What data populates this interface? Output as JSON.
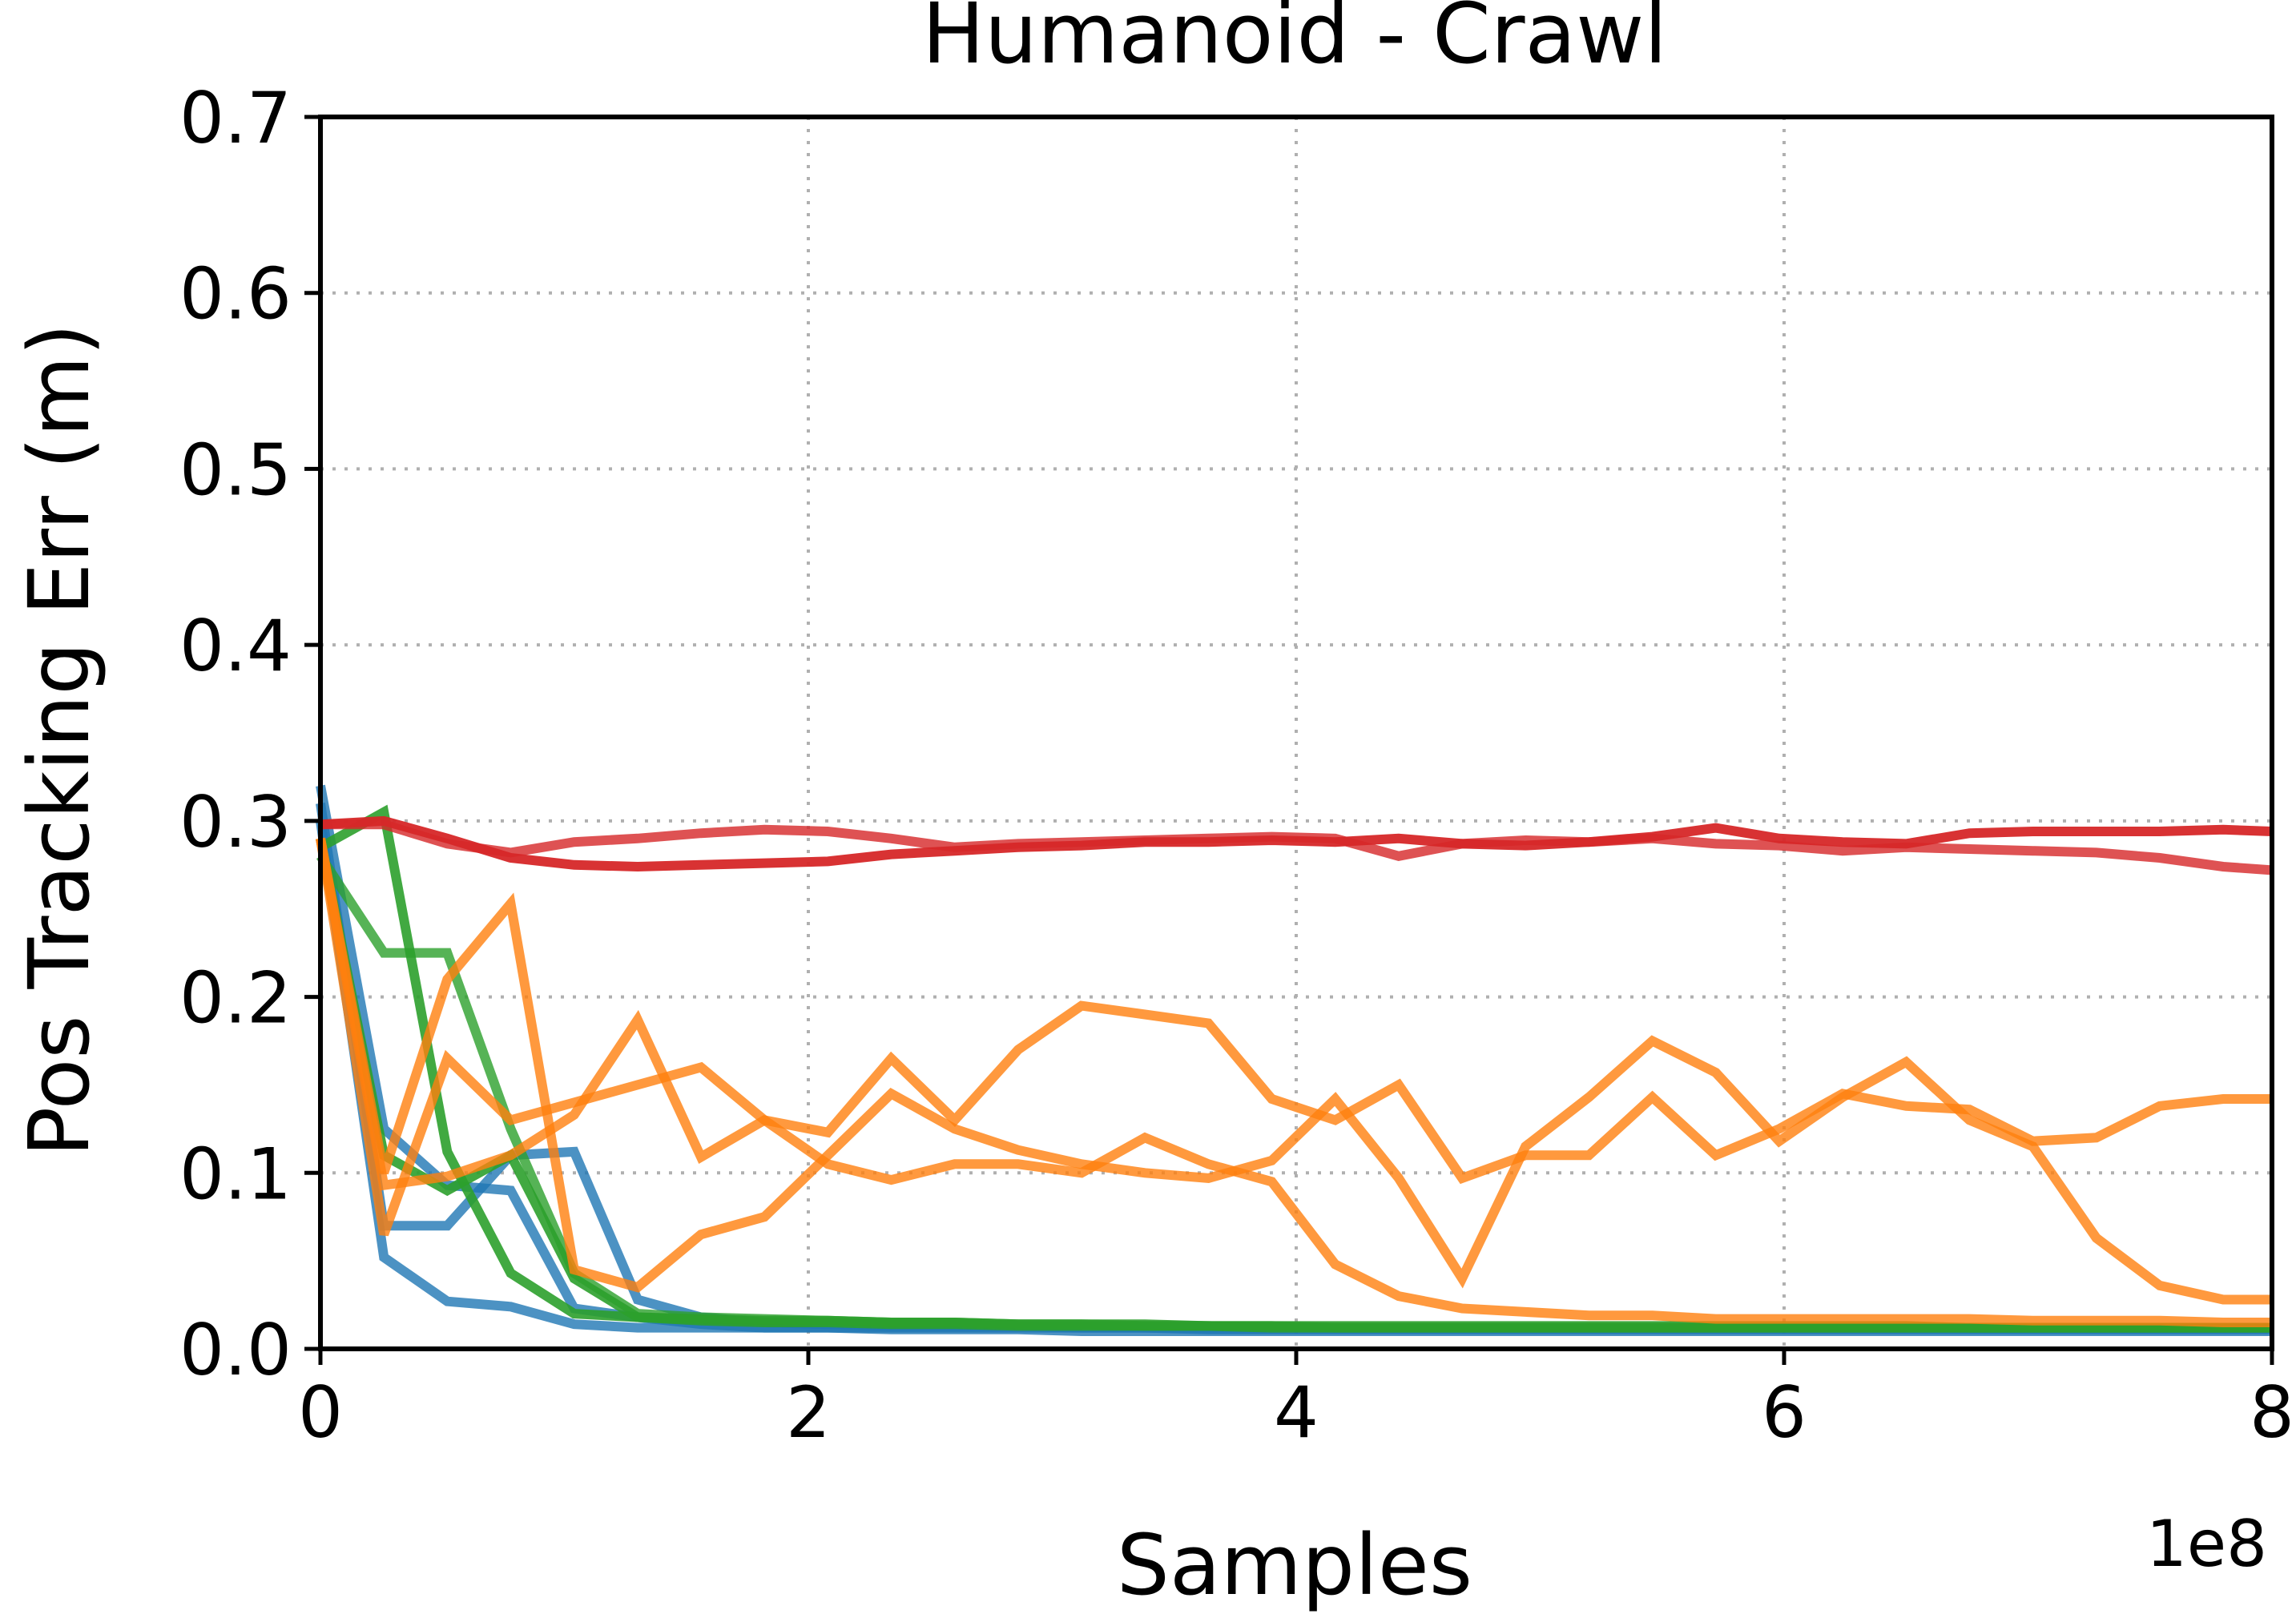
{
  "chart_data": {
    "type": "line",
    "title": "Humanoid - Crawl",
    "xlabel": "Samples",
    "ylabel": "Pos Tracking Err (m)",
    "x_offset_label": "1e8",
    "xlim": [
      0,
      8
    ],
    "ylim": [
      0,
      0.7
    ],
    "xticks": [
      0,
      2,
      4,
      6,
      8
    ],
    "xtick_labels": [
      "0",
      "2",
      "4",
      "6",
      "8"
    ],
    "yticks": [
      0.0,
      0.1,
      0.2,
      0.3,
      0.4,
      0.5,
      0.6,
      0.7
    ],
    "ytick_labels": [
      "0.0",
      "0.1",
      "0.2",
      "0.3",
      "0.4",
      "0.5",
      "0.6",
      "0.7"
    ],
    "grid": true,
    "grid_style": "dotted",
    "legend": "none",
    "x": [
      0,
      0.26,
      0.52,
      0.78,
      1.04,
      1.3,
      1.56,
      1.82,
      2.08,
      2.34,
      2.6,
      2.86,
      3.12,
      3.38,
      3.64,
      3.9,
      4.16,
      4.42,
      4.68,
      4.94,
      5.2,
      5.46,
      5.72,
      5.98,
      6.24,
      6.5,
      6.76,
      7.02,
      7.28,
      7.54,
      7.8,
      8.0
    ],
    "series": [
      {
        "color": "#1f77b4",
        "opacity": 0.8,
        "values": [
          0.32,
          0.125,
          0.093,
          0.09,
          0.023,
          0.018,
          0.014,
          0.012,
          0.012,
          0.011,
          0.011,
          0.011,
          0.01,
          0.01,
          0.01,
          0.01,
          0.01,
          0.01,
          0.01,
          0.01,
          0.01,
          0.01,
          0.01,
          0.01,
          0.01,
          0.01,
          0.01,
          0.01,
          0.01,
          0.01,
          0.01,
          0.01
        ]
      },
      {
        "color": "#1f77b4",
        "opacity": 0.8,
        "values": [
          0.3,
          0.052,
          0.027,
          0.024,
          0.014,
          0.012,
          0.012,
          0.012,
          0.012,
          0.012,
          0.012,
          0.012,
          0.012,
          0.012,
          0.011,
          0.011,
          0.011,
          0.011,
          0.011,
          0.011,
          0.011,
          0.011,
          0.011,
          0.011,
          0.011,
          0.011,
          0.011,
          0.011,
          0.011,
          0.011,
          0.011,
          0.011
        ]
      },
      {
        "color": "#1f77b4",
        "opacity": 0.8,
        "values": [
          0.31,
          0.07,
          0.07,
          0.11,
          0.112,
          0.028,
          0.018,
          0.015,
          0.014,
          0.013,
          0.013,
          0.013,
          0.012,
          0.012,
          0.012,
          0.012,
          0.012,
          0.012,
          0.012,
          0.012,
          0.012,
          0.012,
          0.012,
          0.012,
          0.012,
          0.012,
          0.012,
          0.012,
          0.012,
          0.012,
          0.012,
          0.012
        ]
      },
      {
        "color": "#2ca02c",
        "opacity": 0.8,
        "values": [
          0.28,
          0.225,
          0.225,
          0.125,
          0.043,
          0.02,
          0.018,
          0.017,
          0.016,
          0.015,
          0.015,
          0.014,
          0.014,
          0.013,
          0.013,
          0.013,
          0.012,
          0.012,
          0.012,
          0.012,
          0.012,
          0.012,
          0.012,
          0.012,
          0.012,
          0.012,
          0.012,
          0.012,
          0.012,
          0.012,
          0.012,
          0.012
        ]
      },
      {
        "color": "#2ca02c",
        "opacity": 0.9,
        "values": [
          0.285,
          0.305,
          0.112,
          0.043,
          0.02,
          0.018,
          0.017,
          0.016,
          0.016,
          0.015,
          0.015,
          0.014,
          0.014,
          0.014,
          0.013,
          0.013,
          0.013,
          0.013,
          0.013,
          0.013,
          0.013,
          0.013,
          0.013,
          0.013,
          0.013,
          0.013,
          0.012,
          0.012,
          0.012,
          0.012,
          0.012,
          0.012
        ]
      },
      {
        "color": "#2ca02c",
        "opacity": 0.9,
        "values": [
          0.29,
          0.11,
          0.09,
          0.11,
          0.04,
          0.018,
          0.016,
          0.015,
          0.015,
          0.014,
          0.014,
          0.013,
          0.013,
          0.013,
          0.013,
          0.012,
          0.012,
          0.012,
          0.012,
          0.012,
          0.012,
          0.012,
          0.012,
          0.012,
          0.012,
          0.012,
          0.012,
          0.012,
          0.012,
          0.012,
          0.012,
          0.012
        ]
      },
      {
        "color": "#ff7f0e",
        "opacity": 0.8,
        "values": [
          0.29,
          0.065,
          0.165,
          0.13,
          0.14,
          0.15,
          0.16,
          0.13,
          0.105,
          0.096,
          0.105,
          0.105,
          0.1,
          0.12,
          0.105,
          0.095,
          0.048,
          0.03,
          0.023,
          0.021,
          0.019,
          0.019,
          0.017,
          0.017,
          0.017,
          0.017,
          0.017,
          0.016,
          0.016,
          0.016,
          0.015,
          0.015
        ]
      },
      {
        "color": "#ff7f0e",
        "opacity": 0.8,
        "values": [
          0.29,
          0.093,
          0.098,
          0.11,
          0.133,
          0.187,
          0.109,
          0.13,
          0.123,
          0.165,
          0.13,
          0.17,
          0.195,
          0.19,
          0.185,
          0.142,
          0.13,
          0.15,
          0.097,
          0.11,
          0.11,
          0.143,
          0.11,
          0.125,
          0.145,
          0.138,
          0.136,
          0.118,
          0.12,
          0.138,
          0.142,
          0.142
        ]
      },
      {
        "color": "#ff7f0e",
        "opacity": 0.8,
        "values": [
          0.29,
          0.1,
          0.21,
          0.253,
          0.045,
          0.035,
          0.065,
          0.075,
          0.11,
          0.145,
          0.125,
          0.113,
          0.105,
          0.1,
          0.097,
          0.107,
          0.142,
          0.097,
          0.04,
          0.115,
          0.143,
          0.175,
          0.157,
          0.118,
          0.143,
          0.163,
          0.13,
          0.115,
          0.063,
          0.036,
          0.028,
          0.028
        ]
      },
      {
        "color": "#d62728",
        "opacity": 0.8,
        "values": [
          0.298,
          0.298,
          0.287,
          0.282,
          0.288,
          0.29,
          0.293,
          0.295,
          0.294,
          0.29,
          0.285,
          0.287,
          0.288,
          0.289,
          0.29,
          0.291,
          0.29,
          0.28,
          0.287,
          0.289,
          0.288,
          0.29,
          0.287,
          0.286,
          0.283,
          0.285,
          0.284,
          0.283,
          0.282,
          0.279,
          0.274,
          0.272
        ]
      },
      {
        "color": "#d62728",
        "opacity": 0.95,
        "values": [
          0.298,
          0.3,
          0.29,
          0.279,
          0.275,
          0.274,
          0.275,
          0.276,
          0.277,
          0.281,
          0.283,
          0.285,
          0.286,
          0.288,
          0.288,
          0.289,
          0.288,
          0.29,
          0.287,
          0.286,
          0.288,
          0.291,
          0.296,
          0.29,
          0.288,
          0.287,
          0.293,
          0.294,
          0.294,
          0.294,
          0.295,
          0.294
        ]
      }
    ]
  }
}
